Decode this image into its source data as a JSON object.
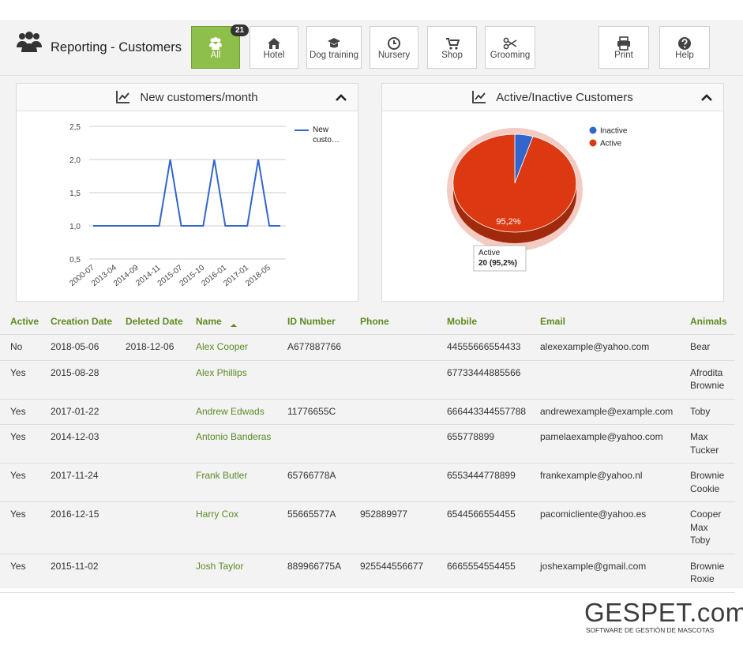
{
  "header": {
    "title": "Reporting - Customers",
    "tabs": [
      {
        "label": "All",
        "badge": "21"
      },
      {
        "label": "Hotel"
      },
      {
        "label": "Dog training"
      },
      {
        "label": "Nursery"
      },
      {
        "label": "Shop"
      },
      {
        "label": "Grooming"
      }
    ],
    "actions": [
      "Print",
      "Help"
    ]
  },
  "chart_data": [
    {
      "type": "line",
      "title": "New customers/month",
      "categories": [
        "2000-07",
        null,
        "2013-04",
        null,
        "2014-09",
        null,
        "2014-11",
        null,
        "2015-07",
        null,
        "2015-10",
        null,
        "2016-01",
        null,
        "2017-01",
        null,
        "2018-05",
        null
      ],
      "series": [
        {
          "name": "New custo…",
          "color": "#3366cc",
          "values": [
            1,
            1,
            1,
            1,
            1,
            1,
            1,
            2,
            1,
            1,
            1,
            2,
            1,
            1,
            1,
            2,
            1,
            1
          ]
        }
      ],
      "ylim": [
        0.5,
        2.5
      ],
      "yticks": [
        {
          "value": 0.5,
          "label": "0,5"
        },
        {
          "value": 1,
          "label": "1,0"
        },
        {
          "value": 1.5,
          "label": "1,5"
        },
        {
          "value": 2,
          "label": "2,0"
        },
        {
          "value": 2.5,
          "label": "2,5"
        }
      ],
      "grid": true,
      "legend": "right"
    },
    {
      "type": "pie",
      "title": "Active/Inactive Customers",
      "categories": [
        "Inactive",
        "Active"
      ],
      "values": [
        1,
        20
      ],
      "colors": [
        "#3366cc",
        "#dc3912"
      ],
      "slice_label": "95,2%",
      "tooltip": {
        "title": "Active",
        "text": "20 (95,2%)"
      },
      "legend": "top-right"
    }
  ],
  "table": {
    "columns": [
      "Active",
      "Creation Date",
      "Deleted Date",
      "Name",
      "ID Number",
      "Phone",
      "Mobile",
      "Email",
      "Animals"
    ],
    "rows": [
      [
        "No",
        "2018-05-06",
        "2018-12-06",
        "Alex Cooper",
        "A677887766",
        null,
        "44555666554433",
        "alexexample@yahoo.com",
        [
          "Bear"
        ]
      ],
      [
        "Yes",
        "2015-08-28",
        null,
        "Alex Phillips",
        null,
        null,
        "67733444885566",
        null,
        [
          "Afrodita",
          "Brownie"
        ]
      ],
      [
        "Yes",
        "2017-01-22",
        null,
        "Andrew Edwads",
        "11776655C",
        null,
        "666443344557788",
        "andrewexample@example.com",
        [
          "Toby"
        ]
      ],
      [
        "Yes",
        "2014-12-03",
        null,
        "Antonio Banderas",
        null,
        null,
        "655778899",
        "pamelaexample@yahoo.com",
        [
          "Max",
          "Tucker"
        ]
      ],
      [
        "Yes",
        "2017-11-24",
        null,
        "Frank Butler",
        "65766778A",
        null,
        "6553444778899",
        "frankexample@yahoo.nl",
        [
          "Brownie",
          "Cookie"
        ]
      ],
      [
        "Yes",
        "2016-12-15",
        null,
        "Harry Cox",
        "55665577A",
        "952889977",
        "6544566554455",
        "pacomicliente@yahoo.es",
        [
          "Cooper",
          "Max",
          "Toby"
        ]
      ],
      [
        "Yes",
        "2015-11-02",
        null,
        "Josh Taylor",
        "889966775A",
        "925544556677",
        "6665554554455",
        "joshexample@gmail.com",
        [
          "Brownie",
          "Roxie"
        ]
      ]
    ]
  },
  "footer": {
    "logo": "GESPET.com",
    "tagline": "SOFTWARE DE GESTIÓN DE MASCOTAS"
  }
}
